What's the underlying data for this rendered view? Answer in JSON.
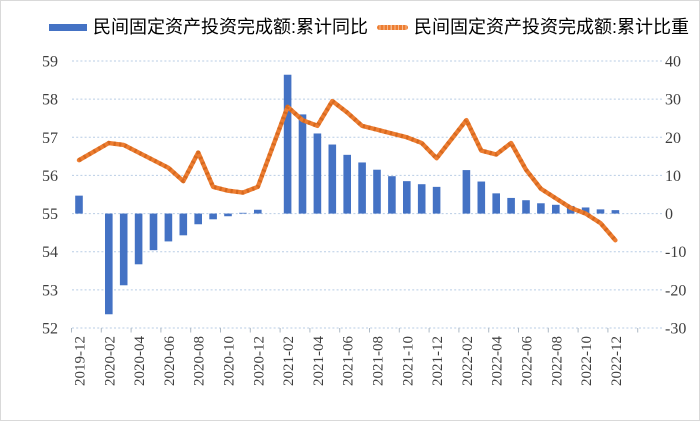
{
  "colors": {
    "bar": "#4472C4",
    "line": "#ED7D31",
    "line_dash": "#C55A11",
    "grid": "#B9CDE5",
    "tick": "#AEB9C4",
    "axis_text": "#3E3E3E"
  },
  "legend": {
    "bar_label": "民间固定资产投资完成额:累计同比",
    "line_label": "民间固定资产投资完成额:累计比重"
  },
  "chart_data": {
    "type": "combo",
    "subtype": "bar+line, dual y-axis, monthly categories with January gaps",
    "categories": [
      "2019-12",
      "2020-02",
      "2020-03",
      "2020-04",
      "2020-05",
      "2020-06",
      "2020-07",
      "2020-08",
      "2020-09",
      "2020-10",
      "2020-11",
      "2020-12",
      "2021-02",
      "2021-03",
      "2021-04",
      "2021-05",
      "2021-06",
      "2021-07",
      "2021-08",
      "2021-09",
      "2021-10",
      "2021-11",
      "2021-12",
      "2022-02",
      "2022-03",
      "2022-04",
      "2022-05",
      "2022-06",
      "2022-07",
      "2022-08",
      "2022-09",
      "2022-10",
      "2022-11",
      "2022-12"
    ],
    "series": [
      {
        "name": "民间固定资产投资完成额:累计同比",
        "type": "bar",
        "axis": "right",
        "unit": "%",
        "color": "#4472C4",
        "values": [
          4.7,
          -26.4,
          -18.8,
          -13.3,
          -9.6,
          -7.3,
          -5.7,
          -2.8,
          -1.5,
          -0.7,
          0.2,
          1.0,
          36.4,
          26.0,
          21.0,
          18.1,
          15.4,
          13.4,
          11.5,
          9.8,
          8.5,
          7.7,
          7.0,
          11.4,
          8.4,
          5.3,
          4.1,
          3.5,
          2.7,
          2.3,
          2.0,
          1.6,
          1.1,
          0.9
        ]
      },
      {
        "name": "民间固定资产投资完成额:累计比重",
        "type": "line",
        "axis": "left",
        "unit": "%",
        "color": "#ED7D31",
        "values": [
          56.4,
          56.85,
          56.8,
          56.6,
          56.4,
          56.2,
          55.85,
          56.6,
          55.7,
          55.6,
          55.55,
          55.7,
          57.8,
          57.45,
          57.3,
          57.95,
          57.65,
          57.3,
          57.2,
          57.1,
          57.0,
          56.85,
          56.45,
          57.45,
          56.65,
          56.55,
          56.85,
          56.15,
          55.65,
          55.4,
          55.15,
          55.0,
          54.75,
          54.3
        ]
      }
    ],
    "left_axis_ticks": [
      59,
      58,
      57,
      56,
      55,
      54,
      53,
      52
    ],
    "right_axis_ticks": [
      40,
      30,
      20,
      10,
      0,
      -10,
      -20,
      -30
    ],
    "left_axis_range": [
      52,
      59
    ],
    "right_axis_range": [
      -30,
      40
    ],
    "x_tick_labels": [
      "2019-12",
      "2020-02",
      "2020-04",
      "2020-06",
      "2020-08",
      "2020-10",
      "2020-12",
      "2021-02",
      "2021-04",
      "2021-06",
      "2021-08",
      "2021-10",
      "2021-12",
      "2022-02",
      "2022-04",
      "2022-06",
      "2022-08",
      "2022-10",
      "2022-12"
    ],
    "grid": "horizontal dashed lines at every left-axis tick",
    "legend_position": "top"
  }
}
